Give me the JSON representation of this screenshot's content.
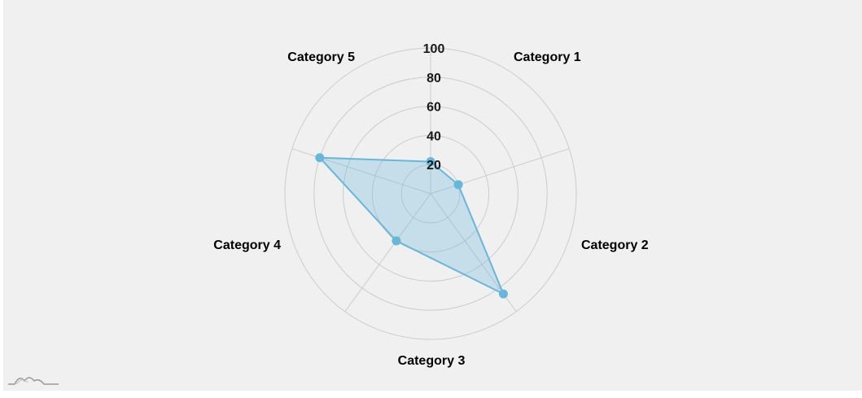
{
  "chart_data": {
    "type": "radar",
    "categories": [
      "Category 1",
      "Category 2",
      "Category 3",
      "Category 4",
      "Category 5"
    ],
    "series": [
      {
        "values": [
          22,
          20,
          85,
          40,
          80
        ]
      }
    ],
    "radial_ticks": [
      "20",
      "40",
      "60",
      "80",
      "100"
    ],
    "rlim": [
      0,
      100
    ],
    "grid": true,
    "colors": {
      "line": "#67b7dc",
      "fill": "#67b7dc",
      "grid": "#cccccc",
      "background": "#f0f0f0"
    }
  }
}
